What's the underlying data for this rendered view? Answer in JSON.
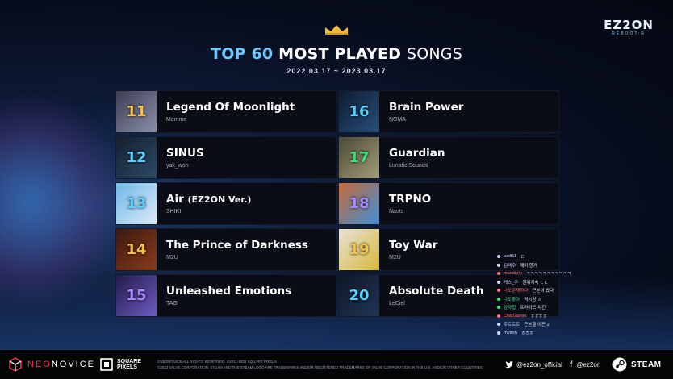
{
  "header": {
    "title_accent": "TOP 60",
    "title_main": "MOST PLAYED",
    "title_end": "SONGS",
    "date_range": "2022.03.17 ~ 2023.03.17",
    "logo_main": "EZ2ON",
    "logo_sub": "REBOOT:R"
  },
  "songs": [
    {
      "rank": "11",
      "title": "Legend Of Moonlight",
      "suffix": "",
      "artist": "Memme",
      "rank_color": "#f2c14e",
      "art": [
        "#3a3d52",
        "#8c8faa"
      ]
    },
    {
      "rank": "12",
      "title": "SINUS",
      "suffix": "",
      "artist": "yak_won",
      "rank_color": "#5ad0ff",
      "art": [
        "#14202e",
        "#2d4a66"
      ]
    },
    {
      "rank": "13",
      "title": "Air",
      "suffix": "(EZ2ON Ver.)",
      "artist": "SHIKI",
      "rank_color": "#5ad0ff",
      "art": [
        "#6fb8e8",
        "#dde9f6"
      ]
    },
    {
      "rank": "14",
      "title": "The Prince of Darkness",
      "suffix": "",
      "artist": "M2U",
      "rank_color": "#f2c14e",
      "art": [
        "#3a1a10",
        "#8b3b1c"
      ]
    },
    {
      "rank": "15",
      "title": "Unleashed Emotions",
      "suffix": "",
      "artist": "TAG",
      "rank_color": "#a78bff",
      "art": [
        "#241a4a",
        "#6e5bc2"
      ]
    },
    {
      "rank": "16",
      "title": "Brain Power",
      "suffix": "",
      "artist": "NOMA",
      "rank_color": "#5ad0ff",
      "art": [
        "#0d1c2e",
        "#2a4f7a"
      ]
    },
    {
      "rank": "17",
      "title": "Guardian",
      "suffix": "",
      "artist": "Lunatic Sounds",
      "rank_color": "#3fe07a",
      "art": [
        "#4a4a36",
        "#a59d7a"
      ]
    },
    {
      "rank": "18",
      "title": "TRPNO",
      "suffix": "",
      "artist": "Nauts",
      "rank_color": "#a78bff",
      "art": [
        "#c46a3a",
        "#3f8fd6"
      ]
    },
    {
      "rank": "19",
      "title": "Toy War",
      "suffix": "",
      "artist": "M2U",
      "rank_color": "#f2c14e",
      "art": [
        "#e8e2d6",
        "#d7b93a"
      ]
    },
    {
      "rank": "20",
      "title": "Absolute Death",
      "suffix": "",
      "artist": "LeCiel",
      "rank_color": "#5ad0ff",
      "art": [
        "#0e1626",
        "#203555"
      ]
    }
  ],
  "chat": [
    {
      "user": "asdf11",
      "msg": "ㄷ",
      "color": "#c9d3ff"
    },
    {
      "user": "김태주",
      "msg": "재미 한거",
      "color": "#c9d3ff"
    },
    {
      "user": "mandarin",
      "msg": "ㅋㅋㅋㅋㅋㅋㅋㅋㅋㅋㅋ",
      "color": "#ff6a6a"
    },
    {
      "user": "캐스_주",
      "msg": "원위계속 ㄷㄷ",
      "color": "#c9d3ff"
    },
    {
      "user": "나도존재하다",
      "msg": "근본이 왔다",
      "color": "#ff6a6a"
    },
    {
      "user": "나도좋아",
      "msg": "역시당 ㅎ",
      "color": "#3fe07a"
    },
    {
      "user": "감자칩",
      "msg": "프라이드 치킨",
      "color": "#3fe07a"
    },
    {
      "user": "ChatGamer",
      "msg": "ㅎㅎㅎㅎ",
      "color": "#ff6a6a"
    },
    {
      "user": "주르르르",
      "msg": "근본을 이끈 2",
      "color": "#c9d3ff"
    },
    {
      "user": "rhythm",
      "msg": "ㅎㅎㅎ",
      "color": "#c9d3ff"
    }
  ],
  "footer": {
    "neo_a": "NEO",
    "neo_b": "NOVICE",
    "square_1": "SQUARE",
    "square_2": "PIXELS",
    "legal_1": "©NEONOVICE ALL RIGHTS RESERVED. ©2011-2023 SQUARE PIXELS",
    "legal_2": "©2023 VALVE CORPORATION. STEAM AND THE STEAM LOGO ARE TRADEMARKS AND/OR REGISTERED TRADEMARKS OF VALVE CORPORATION IN THE U.S. AND/OR OTHER COUNTRIES.",
    "twitter": "@ez2on_official",
    "facebook": "@ez2on",
    "steam": "STEAM"
  }
}
